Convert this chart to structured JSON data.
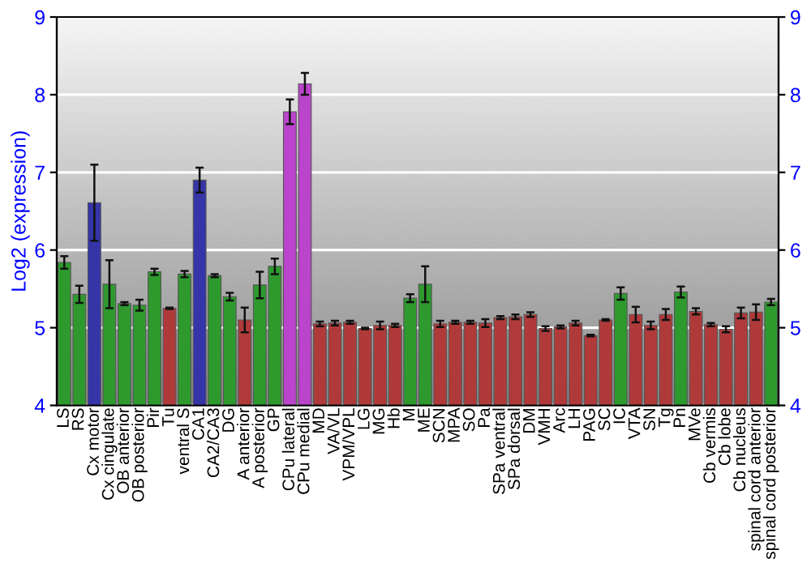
{
  "chart_data": {
    "type": "bar",
    "ylabel": "Log2 (expression)",
    "categories": [
      "LS",
      "RS",
      "Cx motor",
      "Cx cingulate",
      "OB anterior",
      "OB posterior",
      "Pir",
      "Tu",
      "ventral S",
      "CA1",
      "CA2/CA3",
      "DG",
      "A anterior",
      "A posterior",
      "GP",
      "CPu lateral",
      "CPu medial",
      "MD",
      "VA/VL",
      "VPM/VPL",
      "LG",
      "MG",
      "Hb",
      "M",
      "ME",
      "SCN",
      "MPA",
      "SO",
      "Pa",
      "SPa ventral",
      "SPa dorsal",
      "DM",
      "VMH",
      "Arc",
      "LH",
      "PAG",
      "SC",
      "IC",
      "VTA",
      "SN",
      "Tg",
      "Pn",
      "MVe",
      "Cb vermis",
      "Cb lobe",
      "Cb nucleus",
      "spinal cord anterior",
      "spinal cord posterior"
    ],
    "values": [
      5.84,
      5.43,
      6.61,
      5.56,
      5.31,
      5.29,
      5.72,
      5.25,
      5.69,
      6.9,
      5.67,
      5.4,
      5.1,
      5.55,
      5.79,
      7.78,
      8.14,
      5.05,
      5.06,
      5.07,
      4.99,
      5.03,
      5.03,
      5.38,
      5.56,
      5.05,
      5.07,
      5.07,
      5.06,
      5.13,
      5.14,
      5.17,
      4.99,
      5.01,
      5.06,
      4.9,
      5.1,
      5.44,
      5.17,
      5.03,
      5.17,
      5.46,
      5.21,
      5.04,
      4.98,
      5.19,
      5.2,
      5.33
    ],
    "errors": [
      0.08,
      0.11,
      0.49,
      0.31,
      0.02,
      0.07,
      0.04,
      0.01,
      0.04,
      0.16,
      0.02,
      0.05,
      0.16,
      0.17,
      0.1,
      0.16,
      0.14,
      0.03,
      0.03,
      0.02,
      0.01,
      0.05,
      0.02,
      0.05,
      0.23,
      0.04,
      0.02,
      0.02,
      0.05,
      0.02,
      0.03,
      0.03,
      0.03,
      0.02,
      0.03,
      0.01,
      0.01,
      0.08,
      0.1,
      0.05,
      0.07,
      0.07,
      0.04,
      0.02,
      0.04,
      0.07,
      0.1,
      0.04
    ],
    "colors": [
      "#2e9a2e",
      "#2e9a2e",
      "#3535a8",
      "#2e9a2e",
      "#2e9a2e",
      "#2e9a2e",
      "#2e9a2e",
      "#b03a3a",
      "#2e9a2e",
      "#3535a8",
      "#2e9a2e",
      "#2e9a2e",
      "#b03a3a",
      "#2e9a2e",
      "#2e9a2e",
      "#bb44cc",
      "#bb44cc",
      "#b03a3a",
      "#b03a3a",
      "#b03a3a",
      "#b03a3a",
      "#b03a3a",
      "#b03a3a",
      "#2e9a2e",
      "#2e9a2e",
      "#b03a3a",
      "#b03a3a",
      "#b03a3a",
      "#b03a3a",
      "#b03a3a",
      "#b03a3a",
      "#b03a3a",
      "#b03a3a",
      "#b03a3a",
      "#b03a3a",
      "#b03a3a",
      "#b03a3a",
      "#2e9a2e",
      "#b03a3a",
      "#b03a3a",
      "#b03a3a",
      "#2e9a2e",
      "#b03a3a",
      "#b03a3a",
      "#b03a3a",
      "#b03a3a",
      "#b03a3a",
      "#2e9a2e"
    ],
    "ylim": [
      4,
      9
    ],
    "yticks": [
      4,
      5,
      6,
      7,
      8,
      9
    ],
    "y2lim": [
      4,
      9
    ],
    "y2ticks": [
      4,
      5,
      6,
      7,
      8,
      9
    ],
    "grid": "y"
  }
}
